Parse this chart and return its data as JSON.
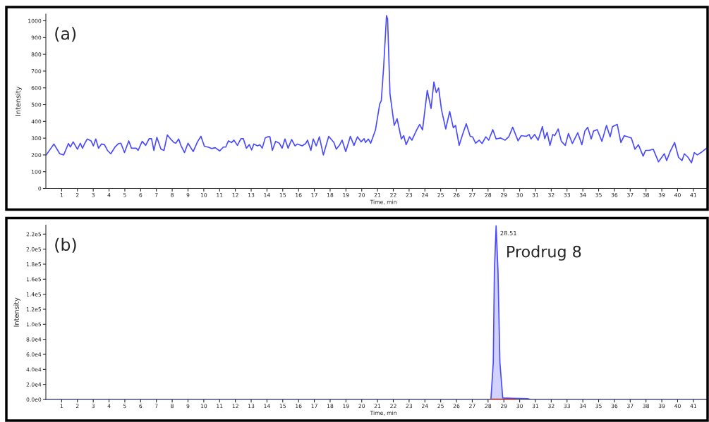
{
  "chart_data": [
    {
      "type": "line",
      "xlabel": "Time, min",
      "ylabel": "Intensity",
      "annotations": [
        "(a)"
      ],
      "xlim": [
        0,
        41.9
      ],
      "ylim": [
        0,
        1040
      ],
      "xticks": [
        1,
        2,
        3,
        4,
        5,
        6,
        7,
        8,
        9,
        10,
        11,
        12,
        13,
        14,
        15,
        16,
        17,
        18,
        19,
        20,
        21,
        22,
        23,
        24,
        25,
        26,
        27,
        28,
        29,
        30,
        31,
        32,
        33,
        34,
        35,
        36,
        37,
        38,
        39,
        40,
        41
      ],
      "yticks": [
        0,
        100,
        200,
        300,
        400,
        500,
        600,
        700,
        800,
        900,
        1000
      ],
      "series": [
        {
          "color": "#4a4aff",
          "x": [
            0.0,
            0.51,
            0.88,
            1.13,
            1.43,
            1.55,
            1.73,
            2.0,
            2.18,
            2.32,
            2.47,
            2.62,
            2.86,
            3.01,
            3.16,
            3.34,
            3.52,
            3.71,
            3.9,
            4.11,
            4.38,
            4.61,
            4.75,
            4.98,
            5.25,
            5.42,
            5.72,
            5.84,
            6.1,
            6.32,
            6.54,
            6.69,
            6.84,
            7.03,
            7.29,
            7.48,
            7.69,
            7.88,
            8.11,
            8.23,
            8.41,
            8.55,
            8.78,
            9.0,
            9.33,
            9.6,
            9.82,
            10.04,
            10.27,
            10.49,
            10.72,
            11.01,
            11.24,
            11.39,
            11.56,
            11.76,
            11.91,
            12.13,
            12.35,
            12.5,
            12.7,
            12.88,
            13.03,
            13.17,
            13.4,
            13.55,
            13.7,
            13.89,
            14.04,
            14.19,
            14.34,
            14.55,
            14.78,
            14.96,
            15.14,
            15.34,
            15.56,
            15.78,
            15.93,
            16.23,
            16.45,
            16.57,
            16.78,
            16.93,
            17.12,
            17.32,
            17.57,
            17.91,
            18.24,
            18.39,
            18.61,
            18.76,
            18.99,
            19.28,
            19.51,
            19.73,
            19.96,
            20.15,
            20.24,
            20.42,
            20.57,
            20.87,
            21.14,
            21.24,
            21.39,
            21.57,
            21.64,
            21.79,
            22.06,
            22.24,
            22.51,
            22.66,
            22.81,
            23.03,
            23.18,
            23.48,
            23.67,
            23.85,
            24.15,
            24.39,
            24.57,
            24.72,
            24.87,
            25.05,
            25.32,
            25.57,
            25.8,
            25.94,
            26.17,
            26.39,
            26.62,
            26.87,
            27.02,
            27.21,
            27.44,
            27.62,
            27.86,
            28.04,
            28.3,
            28.51,
            28.78,
            29.08,
            29.31,
            29.56,
            29.9,
            30.1,
            30.43,
            30.6,
            30.72,
            30.95,
            31.17,
            31.44,
            31.59,
            31.74,
            31.92,
            32.1,
            32.22,
            32.44,
            32.64,
            32.89,
            33.09,
            33.34,
            33.68,
            33.94,
            34.13,
            34.31,
            34.53,
            34.68,
            34.91,
            35.21,
            35.5,
            35.73,
            35.88,
            36.18,
            36.41,
            36.62,
            36.85,
            37.07,
            37.3,
            37.52,
            37.82,
            37.97,
            38.19,
            38.46,
            38.79,
            39.16,
            39.31,
            39.53,
            39.81,
            40.06,
            40.28,
            40.43,
            40.66,
            40.88,
            41.06,
            41.25,
            41.48,
            41.85
          ],
          "values": [
            197,
            265,
            207,
            200,
            268,
            247,
            278,
            234,
            270,
            240,
            270,
            295,
            284,
            254,
            295,
            240,
            265,
            261,
            227,
            207,
            247,
            268,
            270,
            214,
            284,
            240,
            240,
            227,
            281,
            257,
            297,
            297,
            227,
            305,
            234,
            227,
            319,
            297,
            274,
            270,
            295,
            257,
            214,
            270,
            220,
            278,
            311,
            251,
            247,
            238,
            243,
            224,
            247,
            247,
            284,
            274,
            288,
            257,
            297,
            297,
            240,
            261,
            230,
            265,
            254,
            261,
            240,
            301,
            308,
            308,
            227,
            281,
            270,
            240,
            295,
            240,
            292,
            254,
            265,
            254,
            268,
            288,
            227,
            295,
            254,
            308,
            200,
            311,
            274,
            234,
            261,
            288,
            220,
            311,
            257,
            308,
            278,
            297,
            274,
            295,
            270,
            349,
            504,
            524,
            727,
            1031,
            1011,
            565,
            376,
            416,
            295,
            315,
            261,
            308,
            288,
            349,
            382,
            349,
            585,
            477,
            635,
            572,
            599,
            470,
            355,
            459,
            362,
            376,
            257,
            322,
            386,
            311,
            308,
            270,
            288,
            268,
            308,
            288,
            351,
            295,
            301,
            288,
            308,
            365,
            284,
            315,
            311,
            322,
            295,
            322,
            288,
            369,
            297,
            335,
            257,
            322,
            315,
            355,
            281,
            257,
            328,
            268,
            332,
            261,
            342,
            365,
            295,
            342,
            351,
            281,
            376,
            308,
            369,
            382,
            274,
            315,
            308,
            301,
            234,
            261,
            193,
            227,
            227,
            234,
            159,
            207,
            166,
            220,
            274,
            186,
            166,
            207,
            186,
            153,
            214,
            200,
            214,
            241
          ]
        }
      ]
    },
    {
      "type": "area",
      "xlabel": "Time, min",
      "ylabel": "Intensity",
      "annotations": [
        "(b)",
        {
          "text": "28.51",
          "x": 28.51,
          "y": 231000
        },
        "Prodrug 8"
      ],
      "xlim": [
        0,
        41.9
      ],
      "ylim": [
        0,
        232000
      ],
      "xticks": [
        1,
        2,
        3,
        4,
        5,
        6,
        7,
        8,
        9,
        10,
        11,
        12,
        13,
        14,
        15,
        16,
        17,
        18,
        19,
        20,
        21,
        22,
        23,
        24,
        25,
        26,
        27,
        28,
        29,
        30,
        31,
        32,
        33,
        34,
        35,
        36,
        37,
        38,
        39,
        40,
        41
      ],
      "yticks": [
        {
          "value": 0,
          "label": "0.0e0"
        },
        {
          "value": 20000,
          "label": "2.0e4"
        },
        {
          "value": 40000,
          "label": "4.0e4"
        },
        {
          "value": 60000,
          "label": "6.0e4"
        },
        {
          "value": 80000,
          "label": "8.0e4"
        },
        {
          "value": 100000,
          "label": "1.0e5"
        },
        {
          "value": 120000,
          "label": "1.2e5"
        },
        {
          "value": 140000,
          "label": "1.4e5"
        },
        {
          "value": 160000,
          "label": "1.6e5"
        },
        {
          "value": 180000,
          "label": "1.8e5"
        },
        {
          "value": 200000,
          "label": "2.0e5"
        },
        {
          "value": 220000,
          "label": "2.2e5"
        }
      ],
      "series": [
        {
          "color": "#4a4aff",
          "x": [
            0,
            28.18,
            28.33,
            28.4,
            28.51,
            28.63,
            28.75,
            28.93,
            29.5,
            30.5,
            30.7,
            41.9
          ],
          "values": [
            0,
            0,
            49000,
            170000,
            231000,
            170000,
            49000,
            2000,
            1500,
            1000,
            0,
            0
          ]
        },
        {
          "type": "line",
          "color": "#d03030",
          "x": [
            28.2,
            29.7
          ],
          "values": [
            0,
            0
          ]
        }
      ]
    }
  ]
}
